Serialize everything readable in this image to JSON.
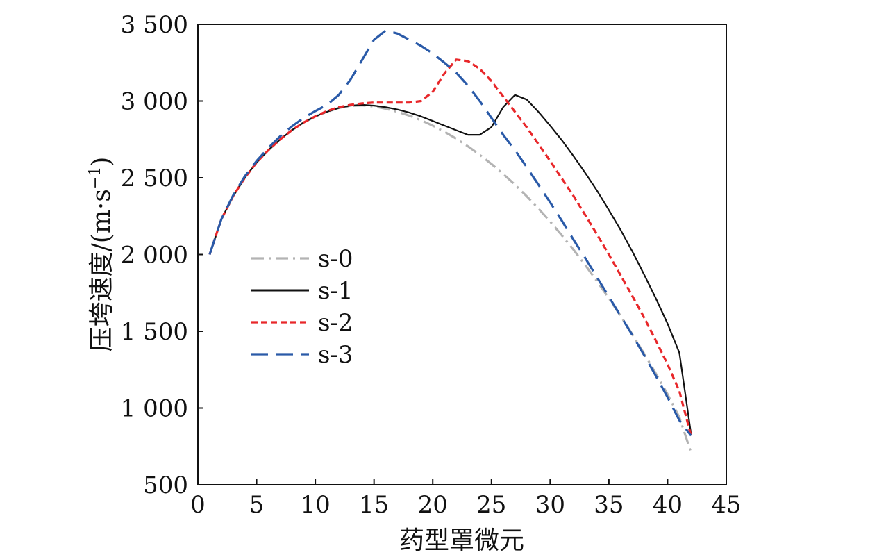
{
  "chart_data": {
    "type": "line",
    "xlabel": "药型罩微元",
    "ylabel": "压垮速度/(m·s⁻¹)",
    "ylabel_main": "压垮速度/(m",
    "ylabel_dot": "·",
    "ylabel_s": "s",
    "ylabel_exp": "−1",
    "ylabel_close": ")",
    "xlim": [
      0,
      45
    ],
    "ylim": [
      500,
      3500
    ],
    "xticks": [
      0,
      5,
      10,
      15,
      20,
      25,
      30,
      35,
      40,
      45
    ],
    "xtick_labels": [
      "0",
      "5",
      "10",
      "15",
      "20",
      "25",
      "30",
      "35",
      "40",
      "45"
    ],
    "yticks": [
      500,
      1000,
      1500,
      2000,
      2500,
      3000,
      3500
    ],
    "ytick_labels": [
      "500",
      "1 000",
      "1 500",
      "2 000",
      "2 500",
      "3 000",
      "3 500"
    ],
    "grid": false,
    "legend_position": "left-center",
    "series": [
      {
        "name": "s-0",
        "color": "#b3b3b3",
        "dash": "dashdot",
        "points": [
          [
            1,
            2000
          ],
          [
            2,
            2230
          ],
          [
            3,
            2380
          ],
          [
            4,
            2500
          ],
          [
            5,
            2600
          ],
          [
            6,
            2680
          ],
          [
            7,
            2750
          ],
          [
            8,
            2810
          ],
          [
            9,
            2860
          ],
          [
            10,
            2900
          ],
          [
            11,
            2930
          ],
          [
            12,
            2955
          ],
          [
            13,
            2968
          ],
          [
            14,
            2972
          ],
          [
            15,
            2965
          ],
          [
            16,
            2950
          ],
          [
            17,
            2930
          ],
          [
            18,
            2905
          ],
          [
            19,
            2875
          ],
          [
            20,
            2840
          ],
          [
            21,
            2800
          ],
          [
            22,
            2755
          ],
          [
            23,
            2705
          ],
          [
            24,
            2650
          ],
          [
            25,
            2590
          ],
          [
            26,
            2525
          ],
          [
            27,
            2455
          ],
          [
            28,
            2380
          ],
          [
            29,
            2300
          ],
          [
            30,
            2215
          ],
          [
            31,
            2125
          ],
          [
            32,
            2030
          ],
          [
            33,
            1930
          ],
          [
            34,
            1825
          ],
          [
            35,
            1715
          ],
          [
            36,
            1600
          ],
          [
            37,
            1480
          ],
          [
            38,
            1355
          ],
          [
            39,
            1225
          ],
          [
            40,
            1090
          ],
          [
            41,
            940
          ],
          [
            42,
            710
          ]
        ]
      },
      {
        "name": "s-1",
        "color": "#111111",
        "dash": "solid",
        "points": [
          [
            1,
            2000
          ],
          [
            2,
            2230
          ],
          [
            3,
            2380
          ],
          [
            4,
            2500
          ],
          [
            5,
            2600
          ],
          [
            6,
            2680
          ],
          [
            7,
            2750
          ],
          [
            8,
            2810
          ],
          [
            9,
            2860
          ],
          [
            10,
            2900
          ],
          [
            11,
            2930
          ],
          [
            12,
            2955
          ],
          [
            13,
            2970
          ],
          [
            14,
            2975
          ],
          [
            15,
            2970
          ],
          [
            16,
            2960
          ],
          [
            17,
            2945
          ],
          [
            18,
            2925
          ],
          [
            19,
            2900
          ],
          [
            20,
            2870
          ],
          [
            21,
            2840
          ],
          [
            22,
            2810
          ],
          [
            23,
            2780
          ],
          [
            24,
            2780
          ],
          [
            25,
            2830
          ],
          [
            26,
            2960
          ],
          [
            27,
            3040
          ],
          [
            28,
            3010
          ],
          [
            29,
            2930
          ],
          [
            30,
            2840
          ],
          [
            31,
            2745
          ],
          [
            32,
            2640
          ],
          [
            33,
            2530
          ],
          [
            34,
            2415
          ],
          [
            35,
            2290
          ],
          [
            36,
            2160
          ],
          [
            37,
            2020
          ],
          [
            38,
            1870
          ],
          [
            39,
            1715
          ],
          [
            40,
            1550
          ],
          [
            41,
            1360
          ],
          [
            42,
            830
          ]
        ]
      },
      {
        "name": "s-2",
        "color": "#e8272a",
        "dash": "dashed",
        "points": [
          [
            1,
            2000
          ],
          [
            2,
            2230
          ],
          [
            3,
            2380
          ],
          [
            4,
            2500
          ],
          [
            5,
            2600
          ],
          [
            6,
            2680
          ],
          [
            7,
            2750
          ],
          [
            8,
            2810
          ],
          [
            9,
            2860
          ],
          [
            10,
            2900
          ],
          [
            11,
            2935
          ],
          [
            12,
            2960
          ],
          [
            13,
            2975
          ],
          [
            14,
            2985
          ],
          [
            15,
            2990
          ],
          [
            16,
            2990
          ],
          [
            17,
            2990
          ],
          [
            18,
            2990
          ],
          [
            19,
            3000
          ],
          [
            20,
            3060
          ],
          [
            21,
            3180
          ],
          [
            22,
            3270
          ],
          [
            23,
            3260
          ],
          [
            24,
            3210
          ],
          [
            25,
            3130
          ],
          [
            26,
            3030
          ],
          [
            27,
            2930
          ],
          [
            28,
            2830
          ],
          [
            29,
            2720
          ],
          [
            30,
            2610
          ],
          [
            31,
            2495
          ],
          [
            32,
            2380
          ],
          [
            33,
            2255
          ],
          [
            34,
            2130
          ],
          [
            35,
            2000
          ],
          [
            36,
            1865
          ],
          [
            37,
            1730
          ],
          [
            38,
            1590
          ],
          [
            39,
            1440
          ],
          [
            40,
            1285
          ],
          [
            41,
            1110
          ],
          [
            42,
            820
          ]
        ]
      },
      {
        "name": "s-3",
        "color": "#2a5aa8",
        "dash": "longdash",
        "points": [
          [
            1,
            2000
          ],
          [
            2,
            2230
          ],
          [
            3,
            2385
          ],
          [
            4,
            2510
          ],
          [
            5,
            2610
          ],
          [
            6,
            2695
          ],
          [
            7,
            2770
          ],
          [
            8,
            2835
          ],
          [
            9,
            2890
          ],
          [
            10,
            2935
          ],
          [
            11,
            2975
          ],
          [
            12,
            3040
          ],
          [
            13,
            3140
          ],
          [
            14,
            3270
          ],
          [
            15,
            3400
          ],
          [
            16,
            3460
          ],
          [
            17,
            3440
          ],
          [
            18,
            3400
          ],
          [
            19,
            3360
          ],
          [
            20,
            3310
          ],
          [
            21,
            3250
          ],
          [
            22,
            3185
          ],
          [
            23,
            3100
          ],
          [
            24,
            3000
          ],
          [
            25,
            2890
          ],
          [
            26,
            2780
          ],
          [
            27,
            2680
          ],
          [
            28,
            2570
          ],
          [
            29,
            2455
          ],
          [
            30,
            2340
          ],
          [
            31,
            2220
          ],
          [
            32,
            2095
          ],
          [
            33,
            1975
          ],
          [
            34,
            1850
          ],
          [
            35,
            1725
          ],
          [
            36,
            1600
          ],
          [
            37,
            1475
          ],
          [
            38,
            1345
          ],
          [
            39,
            1210
          ],
          [
            40,
            1070
          ],
          [
            41,
            920
          ],
          [
            42,
            820
          ]
        ]
      }
    ]
  }
}
